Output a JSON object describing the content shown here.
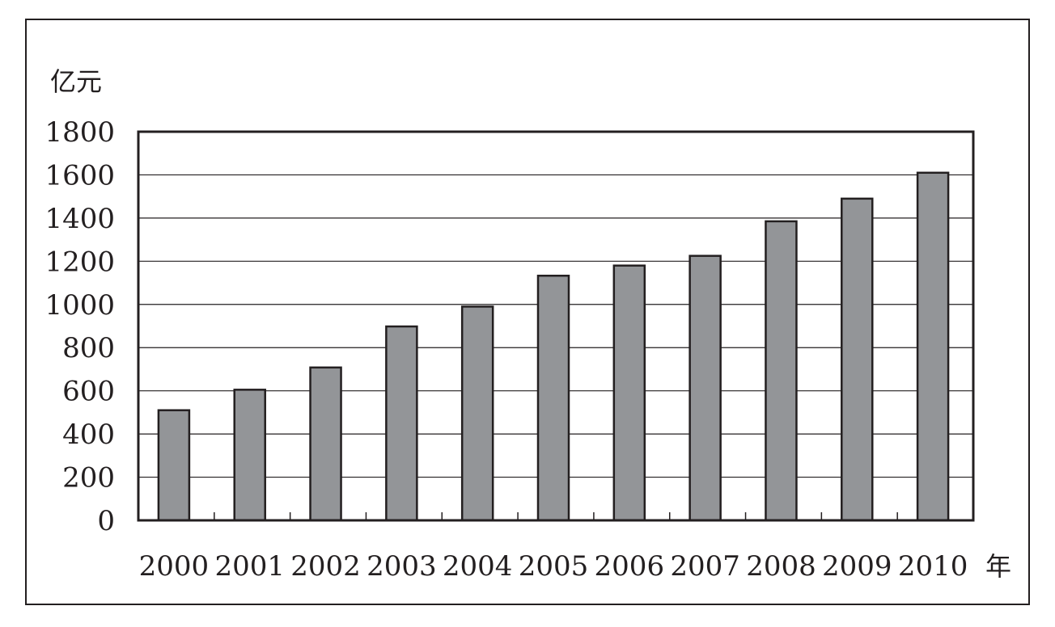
{
  "chart_data": {
    "type": "bar",
    "title": "",
    "ylabel": "亿元",
    "xlabel": "年",
    "categories": [
      "2000",
      "2001",
      "2002",
      "2003",
      "2004",
      "2005",
      "2006",
      "2007",
      "2008",
      "2009",
      "2010"
    ],
    "values": [
      510,
      605,
      708,
      898,
      990,
      1133,
      1180,
      1225,
      1385,
      1490,
      1610
    ],
    "ylim": [
      0,
      1800
    ],
    "yticks": [
      0,
      200,
      400,
      600,
      800,
      1000,
      1200,
      1400,
      1600,
      1800
    ],
    "grid": true,
    "legend": "none",
    "colors": {
      "bar": "#939598",
      "stroke": "#231f20",
      "grid": "#231f20"
    }
  }
}
